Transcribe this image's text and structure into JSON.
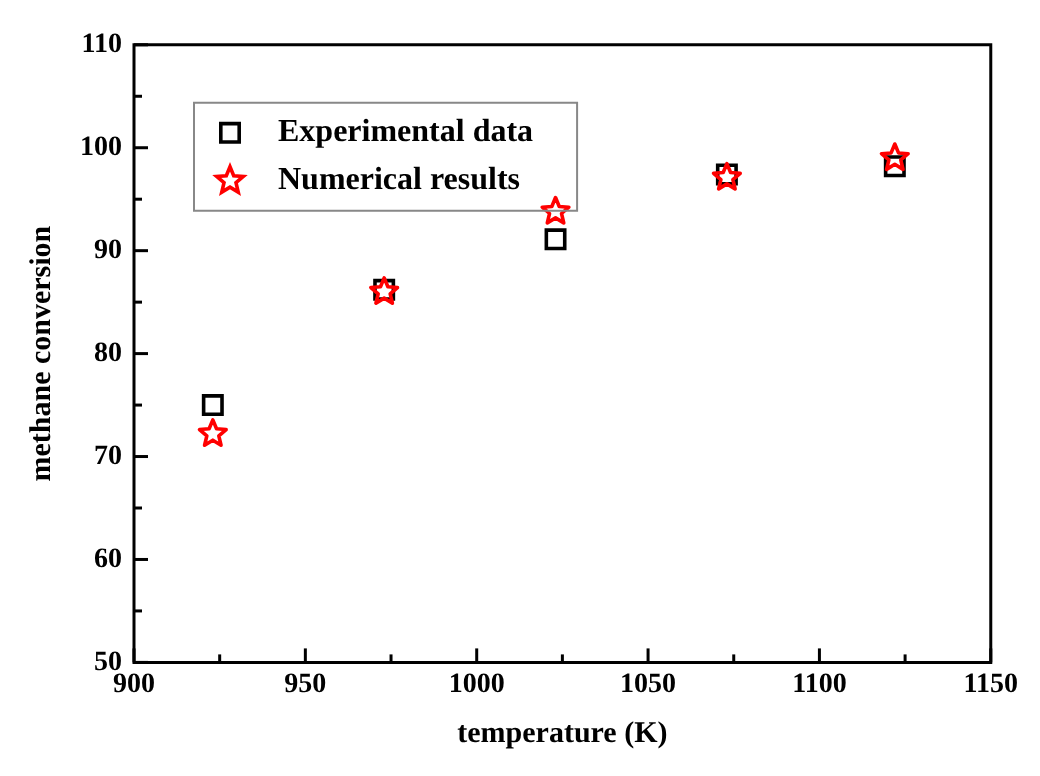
{
  "chart_data": {
    "type": "scatter",
    "xlabel": "temperature (K)",
    "ylabel": "methane conversion",
    "xlim": [
      900,
      1150
    ],
    "xticks": [
      900,
      950,
      1000,
      1050,
      1100,
      1150
    ],
    "ylim": [
      50,
      110
    ],
    "yticks": [
      50,
      60,
      70,
      80,
      90,
      100,
      110
    ],
    "grid": false,
    "legend": "top left",
    "series": [
      {
        "name": "Experimental data",
        "color": "#000000",
        "marker": "square",
        "x": [
          923,
          973,
          1023,
          1073,
          1122
        ],
        "values": [
          75.0,
          86.2,
          91.1,
          97.4,
          98.2
        ]
      },
      {
        "name": "Numerical results",
        "color": "#ff0000",
        "marker": "star",
        "x": [
          923,
          973,
          1023,
          1073,
          1122
        ],
        "values": [
          72.2,
          86.0,
          93.8,
          97.1,
          99.0
        ]
      }
    ]
  }
}
